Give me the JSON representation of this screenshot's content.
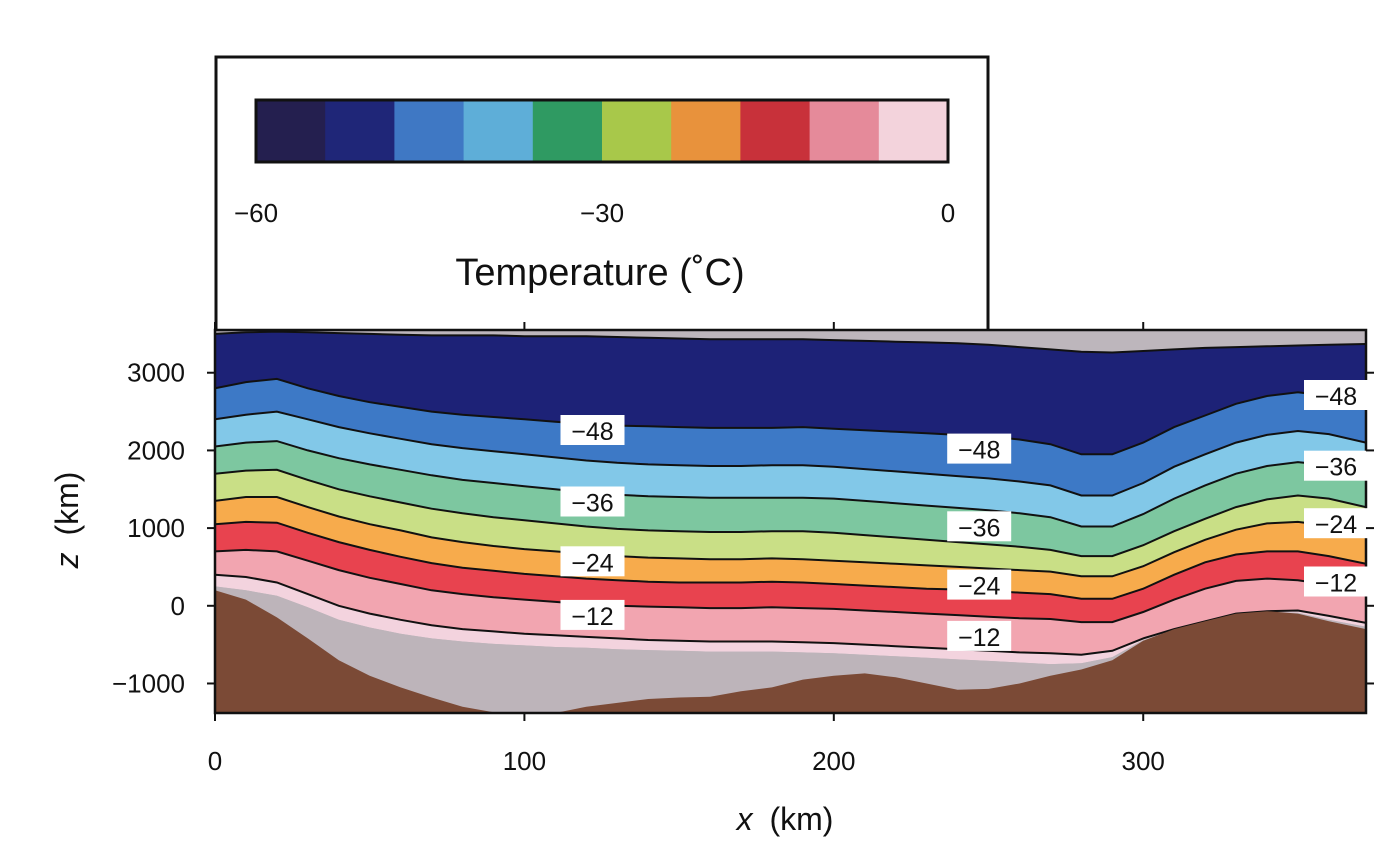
{
  "chart_data": {
    "type": "heatmap",
    "title": "",
    "xlabel_var": "x",
    "xlabel_unit": "(km)",
    "ylabel_var": "z",
    "ylabel_unit": "(km)",
    "xlim": [
      0,
      372
    ],
    "ylim": [
      -1380,
      3550
    ],
    "x_ticks": [
      0,
      100,
      200,
      300
    ],
    "x_tick_labels": [
      "0",
      "100",
      "200",
      "300"
    ],
    "y_ticks": [
      -1000,
      0,
      1000,
      2000,
      3000
    ],
    "y_tick_labels": [
      "−1000",
      "0",
      "1000",
      "2000",
      "3000"
    ],
    "grid": false,
    "colorbar": {
      "label": "Temperature (˚C)",
      "min": -60,
      "max": 0,
      "ticks": [
        -60,
        -30,
        0
      ],
      "tick_labels": [
        "−60",
        "−30",
        "0"
      ],
      "colors": [
        "#241f4f",
        "#1f2678",
        "#3f78c4",
        "#5eaed8",
        "#2f9a62",
        "#a8c84a",
        "#e8923c",
        "#c8313a",
        "#e58a9a",
        "#f3d3dc"
      ]
    },
    "contour_levels": [
      -54,
      -48,
      -42,
      -36,
      -30,
      -24,
      -18,
      -12,
      -6,
      -3
    ],
    "band_colors": [
      "#1d2277",
      "#3d79c6",
      "#82c8e8",
      "#7dc7a0",
      "#c9df86",
      "#f7ab4c",
      "#e8434f",
      "#f2a5b0",
      "#f3d3de"
    ],
    "terrain_color": "#7b4a36",
    "cold_pool_color": "#bdb4ba",
    "model_top_color": "#bdb6bc",
    "terrain": {
      "x": [
        0,
        10,
        20,
        30,
        40,
        50,
        60,
        70,
        80,
        90,
        100,
        110,
        120,
        130,
        140,
        150,
        160,
        170,
        180,
        190,
        200,
        210,
        220,
        230,
        240,
        250,
        260,
        270,
        280,
        290,
        300,
        310,
        320,
        330,
        340,
        350,
        360,
        372
      ],
      "z": [
        200,
        80,
        -150,
        -420,
        -700,
        -900,
        -1050,
        -1180,
        -1300,
        -1370,
        -1400,
        -1380,
        -1300,
        -1250,
        -1200,
        -1180,
        -1170,
        -1100,
        -1050,
        -950,
        -900,
        -870,
        -920,
        -1000,
        -1080,
        -1070,
        -1000,
        -900,
        -820,
        -700,
        -450,
        -300,
        -200,
        -100,
        -70,
        -100,
        -200,
        -300
      ]
    },
    "isotherms": [
      {
        "level": -54,
        "z": [
          3500,
          3520,
          3530,
          3520,
          3510,
          3500,
          3490,
          3480,
          3480,
          3480,
          3470,
          3470,
          3470,
          3460,
          3450,
          3440,
          3430,
          3430,
          3430,
          3430,
          3420,
          3410,
          3400,
          3390,
          3380,
          3360,
          3330,
          3300,
          3270,
          3260,
          3280,
          3300,
          3320,
          3330,
          3340,
          3350,
          3360,
          3370
        ]
      },
      {
        "level": -48,
        "z": [
          2800,
          2880,
          2920,
          2800,
          2700,
          2620,
          2560,
          2500,
          2460,
          2430,
          2400,
          2370,
          2340,
          2320,
          2310,
          2300,
          2290,
          2290,
          2290,
          2300,
          2280,
          2260,
          2240,
          2220,
          2200,
          2180,
          2140,
          2080,
          1950,
          1950,
          2100,
          2300,
          2450,
          2600,
          2700,
          2750,
          2700,
          2600
        ]
      },
      {
        "level": -42,
        "z": [
          2400,
          2460,
          2500,
          2400,
          2300,
          2220,
          2150,
          2080,
          2030,
          1990,
          1950,
          1910,
          1870,
          1840,
          1820,
          1810,
          1800,
          1800,
          1810,
          1810,
          1790,
          1760,
          1730,
          1700,
          1670,
          1640,
          1600,
          1550,
          1420,
          1420,
          1580,
          1790,
          1950,
          2100,
          2200,
          2250,
          2210,
          2100
        ]
      },
      {
        "level": -36,
        "z": [
          2050,
          2100,
          2120,
          2000,
          1900,
          1820,
          1750,
          1680,
          1620,
          1580,
          1540,
          1500,
          1460,
          1430,
          1410,
          1400,
          1390,
          1390,
          1390,
          1390,
          1380,
          1350,
          1320,
          1290,
          1260,
          1230,
          1190,
          1140,
          1020,
          1020,
          1180,
          1380,
          1550,
          1700,
          1800,
          1850,
          1810,
          1700
        ]
      },
      {
        "level": -30,
        "z": [
          1700,
          1740,
          1750,
          1620,
          1500,
          1410,
          1330,
          1250,
          1190,
          1140,
          1100,
          1060,
          1020,
          990,
          970,
          960,
          950,
          950,
          960,
          960,
          940,
          910,
          880,
          850,
          820,
          790,
          760,
          720,
          640,
          640,
          780,
          960,
          1120,
          1270,
          1370,
          1420,
          1380,
          1270
        ]
      },
      {
        "level": -24,
        "z": [
          1350,
          1400,
          1400,
          1270,
          1150,
          1050,
          970,
          880,
          820,
          770,
          730,
          700,
          670,
          640,
          620,
          610,
          600,
          600,
          610,
          600,
          580,
          560,
          540,
          520,
          500,
          480,
          460,
          440,
          380,
          380,
          510,
          690,
          850,
          980,
          1060,
          1080,
          1030,
          920
        ]
      },
      {
        "level": -18,
        "z": [
          1050,
          1080,
          1070,
          940,
          820,
          720,
          630,
          550,
          490,
          450,
          410,
          380,
          350,
          330,
          310,
          300,
          300,
          300,
          310,
          300,
          280,
          260,
          240,
          220,
          210,
          190,
          170,
          150,
          90,
          90,
          220,
          400,
          560,
          660,
          700,
          700,
          640,
          540
        ]
      },
      {
        "level": -12,
        "z": [
          700,
          720,
          700,
          580,
          460,
          360,
          280,
          200,
          150,
          110,
          80,
          50,
          20,
          0,
          -10,
          -20,
          -30,
          -30,
          -20,
          -30,
          -40,
          -60,
          -80,
          -100,
          -120,
          -140,
          -160,
          -170,
          -210,
          -210,
          -80,
          80,
          220,
          320,
          350,
          330,
          270,
          180
        ]
      },
      {
        "level": -6,
        "z": [
          400,
          370,
          300,
          150,
          0,
          -100,
          -180,
          -250,
          -300,
          -330,
          -360,
          -380,
          -400,
          -420,
          -440,
          -450,
          -460,
          -460,
          -460,
          -470,
          -480,
          -500,
          -520,
          -540,
          -560,
          -580,
          -600,
          -610,
          -630,
          -580,
          -420,
          -300,
          -200,
          -100,
          -70,
          -60,
          -130,
          -220
        ]
      },
      {
        "level": -3,
        "z": [
          250,
          200,
          130,
          -20,
          -180,
          -280,
          -360,
          -420,
          -460,
          -490,
          -510,
          -530,
          -540,
          -560,
          -570,
          -580,
          -590,
          -590,
          -590,
          -600,
          -610,
          -630,
          -650,
          -670,
          -690,
          -710,
          -730,
          -750,
          -740,
          -660,
          -440,
          -310,
          -210,
          -110,
          -75,
          -90,
          -180,
          -270
        ]
      }
    ],
    "contour_labels": [
      {
        "text": "−48",
        "x": 122,
        "z": 2250
      },
      {
        "text": "−36",
        "x": 122,
        "z": 1330
      },
      {
        "text": "−24",
        "x": 122,
        "z": 560
      },
      {
        "text": "−12",
        "x": 122,
        "z": -130
      },
      {
        "text": "−48",
        "x": 247,
        "z": 2010
      },
      {
        "text": "−36",
        "x": 247,
        "z": 1010
      },
      {
        "text": "−24",
        "x": 247,
        "z": 260
      },
      {
        "text": "−12",
        "x": 247,
        "z": -400
      },
      {
        "text": "−48",
        "x": 367,
        "z": 2700
      },
      {
        "text": "−36",
        "x": 367,
        "z": 1790
      },
      {
        "text": "−24",
        "x": 367,
        "z": 1050
      },
      {
        "text": "−12",
        "x": 367,
        "z": 300
      }
    ]
  }
}
